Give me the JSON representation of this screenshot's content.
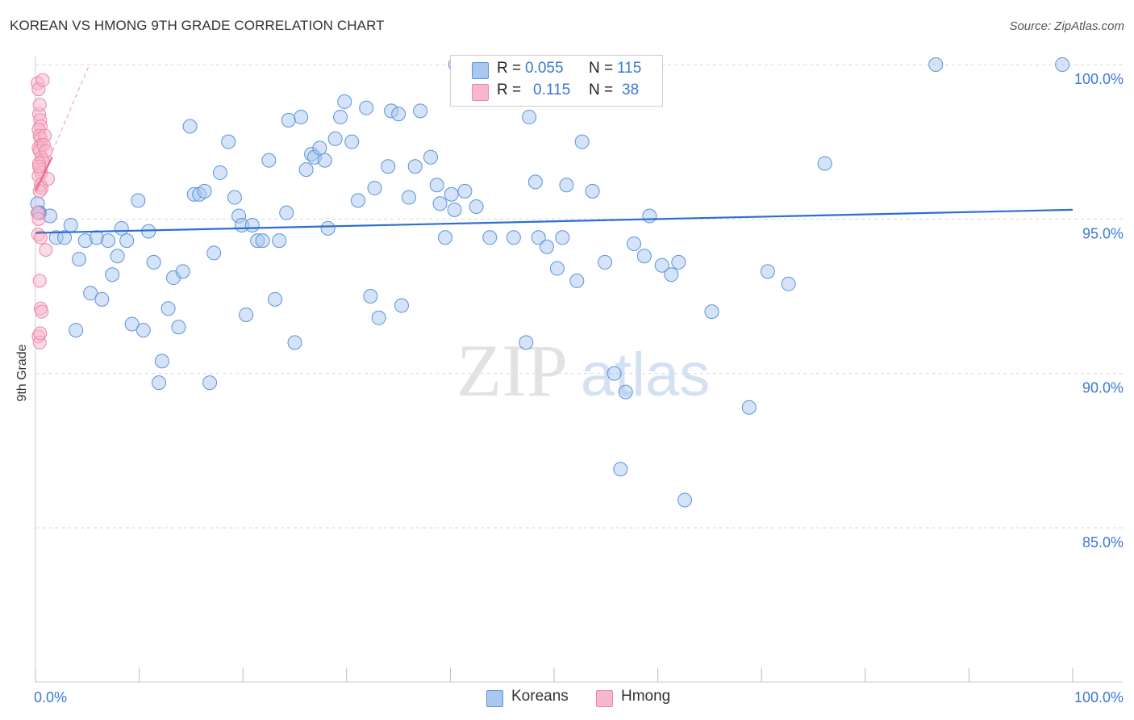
{
  "title": "KOREAN VS HMONG 9TH GRADE CORRELATION CHART",
  "source": "Source: ZipAtlas.com",
  "watermark": {
    "zip": "ZIP",
    "atlas": "atlas"
  },
  "legend": {
    "koreans": {
      "r_label": "R =",
      "r_value": "0.055",
      "n_label": "N =",
      "n_value": "115"
    },
    "hmong": {
      "r_label": "R =",
      "r_value": "0.115",
      "n_label": "N =",
      "n_value": "38"
    }
  },
  "bottom_legend": {
    "koreans": "Koreans",
    "hmong": "Hmong"
  },
  "colors": {
    "korean_fill": "#a9c8f0",
    "korean_stroke": "#5b93dc",
    "korean_line": "#2b6fcf",
    "hmong_fill": "#f7b8cc",
    "hmong_stroke": "#ef85a5",
    "hmong_line": "#ea6a91",
    "axis_label": "#3b78d4",
    "grid": "#d8d8d8"
  },
  "chart_data": {
    "type": "scatter",
    "title": "KOREAN VS HMONG 9TH GRADE CORRELATION CHART",
    "xlabel": "",
    "ylabel": "9th Grade",
    "xlim": [
      0,
      100
    ],
    "ylim": [
      80.3,
      100.7
    ],
    "x_tick_labels": [
      "0.0%",
      "100.0%"
    ],
    "y_ticks": [
      85,
      90,
      95,
      100
    ],
    "y_tick_labels": [
      "85.0%",
      "90.0%",
      "95.0%",
      "100.0%"
    ],
    "grid": true,
    "series": [
      {
        "name": "Koreans",
        "trend": [
          [
            0,
            94.55
          ],
          [
            100,
            95.3
          ]
        ],
        "points": [
          [
            0.2,
            95.5
          ],
          [
            0.4,
            95.2
          ],
          [
            1.4,
            95.1
          ],
          [
            2.0,
            94.4
          ],
          [
            2.8,
            94.4
          ],
          [
            3.4,
            94.8
          ],
          [
            3.9,
            91.4
          ],
          [
            4.2,
            93.7
          ],
          [
            4.8,
            94.3
          ],
          [
            5.3,
            92.6
          ],
          [
            5.9,
            94.4
          ],
          [
            6.4,
            92.4
          ],
          [
            7.0,
            94.3
          ],
          [
            7.4,
            93.2
          ],
          [
            7.9,
            93.8
          ],
          [
            8.3,
            94.7
          ],
          [
            8.8,
            94.3
          ],
          [
            9.3,
            91.6
          ],
          [
            9.9,
            95.6
          ],
          [
            10.4,
            91.4
          ],
          [
            10.9,
            94.6
          ],
          [
            11.4,
            93.6
          ],
          [
            11.9,
            89.7
          ],
          [
            12.2,
            90.4
          ],
          [
            12.8,
            92.1
          ],
          [
            13.3,
            93.1
          ],
          [
            13.8,
            91.5
          ],
          [
            14.2,
            93.3
          ],
          [
            14.9,
            98.0
          ],
          [
            15.3,
            95.8
          ],
          [
            15.8,
            95.8
          ],
          [
            16.3,
            95.9
          ],
          [
            16.8,
            89.7
          ],
          [
            17.2,
            93.9
          ],
          [
            17.8,
            96.5
          ],
          [
            18.6,
            97.5
          ],
          [
            19.2,
            95.7
          ],
          [
            19.6,
            95.1
          ],
          [
            19.9,
            94.8
          ],
          [
            20.3,
            91.9
          ],
          [
            20.9,
            94.8
          ],
          [
            21.4,
            94.3
          ],
          [
            21.9,
            94.3
          ],
          [
            22.5,
            96.9
          ],
          [
            23.1,
            92.4
          ],
          [
            23.5,
            94.3
          ],
          [
            24.2,
            95.2
          ],
          [
            24.4,
            98.2
          ],
          [
            25.0,
            91.0
          ],
          [
            25.6,
            98.3
          ],
          [
            26.1,
            96.6
          ],
          [
            26.6,
            97.1
          ],
          [
            26.9,
            97.0
          ],
          [
            27.4,
            97.3
          ],
          [
            27.9,
            96.9
          ],
          [
            28.2,
            94.7
          ],
          [
            28.9,
            97.6
          ],
          [
            29.4,
            98.3
          ],
          [
            29.8,
            98.8
          ],
          [
            30.5,
            97.5
          ],
          [
            31.1,
            95.6
          ],
          [
            31.9,
            98.6
          ],
          [
            32.3,
            92.5
          ],
          [
            32.7,
            96.0
          ],
          [
            33.1,
            91.8
          ],
          [
            34.0,
            96.7
          ],
          [
            34.3,
            98.5
          ],
          [
            35.0,
            98.4
          ],
          [
            35.3,
            92.2
          ],
          [
            36.0,
            95.7
          ],
          [
            36.6,
            96.7
          ],
          [
            37.1,
            98.5
          ],
          [
            38.1,
            97.0
          ],
          [
            38.7,
            96.1
          ],
          [
            39.0,
            95.5
          ],
          [
            39.5,
            94.4
          ],
          [
            40.1,
            95.8
          ],
          [
            40.4,
            95.3
          ],
          [
            41.4,
            95.9
          ],
          [
            42.1,
            98.9
          ],
          [
            42.5,
            95.4
          ],
          [
            43.8,
            94.4
          ],
          [
            46.1,
            94.4
          ],
          [
            47.3,
            91.0
          ],
          [
            47.6,
            98.3
          ],
          [
            48.2,
            96.2
          ],
          [
            48.5,
            94.4
          ],
          [
            49.3,
            94.1
          ],
          [
            50.3,
            93.4
          ],
          [
            50.8,
            94.4
          ],
          [
            51.2,
            96.1
          ],
          [
            52.2,
            93.0
          ],
          [
            52.7,
            97.5
          ],
          [
            53.7,
            95.9
          ],
          [
            54.9,
            93.6
          ],
          [
            55.8,
            90.0
          ],
          [
            56.4,
            86.9
          ],
          [
            56.9,
            89.4
          ],
          [
            57.7,
            94.2
          ],
          [
            58.7,
            93.8
          ],
          [
            59.2,
            95.1
          ],
          [
            60.4,
            93.5
          ],
          [
            61.3,
            93.2
          ],
          [
            62.0,
            93.6
          ],
          [
            62.6,
            85.9
          ],
          [
            65.2,
            92.0
          ],
          [
            68.8,
            88.9
          ],
          [
            70.6,
            93.3
          ],
          [
            72.6,
            92.9
          ],
          [
            76.1,
            96.8
          ],
          [
            86.8,
            100.0
          ],
          [
            99.0,
            100.0
          ],
          [
            40.5,
            100.0
          ],
          [
            41.2,
            100.0
          ],
          [
            0.3,
            95.2
          ]
        ]
      },
      {
        "name": "Hmong",
        "trend": [
          [
            0,
            95.9
          ],
          [
            1.6,
            97.0
          ]
        ],
        "trend_extension": [
          [
            0,
            95.9
          ],
          [
            5.2,
            100.0
          ]
        ],
        "points": [
          [
            0.2,
            99.4
          ],
          [
            0.3,
            99.2
          ],
          [
            0.35,
            98.4
          ],
          [
            0.4,
            98.7
          ],
          [
            0.45,
            98.2
          ],
          [
            0.5,
            98.0
          ],
          [
            0.3,
            97.9
          ],
          [
            0.4,
            97.7
          ],
          [
            0.5,
            97.6
          ],
          [
            0.55,
            97.4
          ],
          [
            0.3,
            97.3
          ],
          [
            0.4,
            97.2
          ],
          [
            0.6,
            97.0
          ],
          [
            0.7,
            96.9
          ],
          [
            0.35,
            96.8
          ],
          [
            0.45,
            96.6
          ],
          [
            0.55,
            96.5
          ],
          [
            0.3,
            96.4
          ],
          [
            0.5,
            96.1
          ],
          [
            0.6,
            96.0
          ],
          [
            0.4,
            95.9
          ],
          [
            0.9,
            97.7
          ],
          [
            0.8,
            97.4
          ],
          [
            1.0,
            97.2
          ],
          [
            1.2,
            96.3
          ],
          [
            0.2,
            95.2
          ],
          [
            0.3,
            95.0
          ],
          [
            0.25,
            94.5
          ],
          [
            0.5,
            94.4
          ],
          [
            1.0,
            94.0
          ],
          [
            0.4,
            93.0
          ],
          [
            0.5,
            92.1
          ],
          [
            0.6,
            92.0
          ],
          [
            0.3,
            91.2
          ],
          [
            0.4,
            91.0
          ],
          [
            0.45,
            91.3
          ],
          [
            0.7,
            99.5
          ],
          [
            0.35,
            96.7
          ]
        ]
      }
    ]
  }
}
